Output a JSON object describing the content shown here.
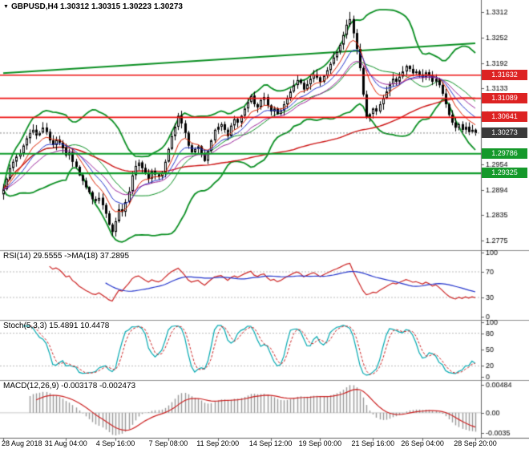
{
  "header": {
    "marker": "▼"
  },
  "chart_data": [
    {
      "type": "candlestick",
      "symbol": "GBPUSD",
      "timeframe": "H4",
      "title": "GBPUSD,H4 1.30312 1.30315 1.30223 1.30273",
      "ohlc_display": {
        "open": "1.30312",
        "high": "1.30315",
        "low": "1.30223",
        "close": "1.30273"
      },
      "closes": [
        1.2895,
        1.292,
        1.2945,
        1.296,
        1.2972,
        1.298,
        1.2998,
        1.3015,
        1.3028,
        1.3035,
        1.3022,
        1.3028,
        1.304,
        1.303,
        1.301,
        1.2999,
        1.3012,
        1.3005,
        1.2992,
        1.2975,
        1.2982,
        1.296,
        1.2948,
        1.2928,
        1.2915,
        1.29,
        1.2888,
        1.2872,
        1.2868,
        1.2875,
        1.2858,
        1.2838,
        1.2812,
        1.2795,
        1.282,
        1.2848,
        1.2842,
        1.2865,
        1.289,
        1.2928,
        1.295,
        1.2958,
        1.2945,
        1.2932,
        1.292,
        1.2938,
        1.293,
        1.2925,
        1.2935,
        1.296,
        1.299,
        1.302,
        1.3042,
        1.3068,
        1.305,
        1.3028,
        1.2998,
        1.2982,
        1.299,
        1.2996,
        1.2978,
        1.2962,
        1.2985,
        1.301,
        1.3035,
        1.3042,
        1.3048,
        1.3035,
        1.302,
        1.3045,
        1.306,
        1.3052,
        1.3068,
        1.3085,
        1.31,
        1.3115,
        1.3095,
        1.3088,
        1.3105,
        1.3112,
        1.3092,
        1.3078,
        1.3085,
        1.3072,
        1.308,
        1.3095,
        1.311,
        1.3125,
        1.314,
        1.3152,
        1.3145,
        1.313,
        1.3142,
        1.3155,
        1.3165,
        1.3158,
        1.3148,
        1.3162,
        1.3175,
        1.319,
        1.3205,
        1.3218,
        1.3235,
        1.3258,
        1.3282,
        1.3295,
        1.3262,
        1.3225,
        1.318,
        1.3118,
        1.3065,
        1.3072,
        1.3085,
        1.3078,
        1.3095,
        1.311,
        1.3125,
        1.3142,
        1.3155,
        1.3148,
        1.316,
        1.3172,
        1.3185,
        1.3178,
        1.3168,
        1.3172,
        1.3165,
        1.3158,
        1.317,
        1.3162,
        1.3148,
        1.3155,
        1.314,
        1.312,
        1.3095,
        1.307,
        1.3052,
        1.304,
        1.3048,
        1.3035,
        1.3042,
        1.303,
        1.3035,
        1.3027
      ],
      "spike_high": {
        "index": 105,
        "price": 1.3312
      },
      "spike_low": {
        "index": 33,
        "price": 1.2785
      },
      "y_range": [
        1.2752,
        1.334
      ],
      "y_tick_labels": [
        "1.3312",
        "1.3252",
        "1.3192",
        "1.3133",
        "1.3073",
        "1.2954",
        "1.2894",
        "1.2835",
        "1.2775"
      ],
      "x_tick_labels": [
        "28 Aug 2018",
        "31 Aug 04:00",
        "4 Sep 16:00",
        "7 Sep 08:00",
        "11 Sep 20:00",
        "14 Sep 12:00",
        "19 Sep 00:00",
        "21 Sep 16:00",
        "26 Sep 04:00",
        "28 Sep 20:00"
      ],
      "x_tick_indices": [
        0,
        19,
        34,
        50,
        65,
        81,
        96,
        112,
        127,
        143
      ],
      "hlines": [
        {
          "label": "1.31632",
          "price": 1.31632,
          "color": "#ee1111",
          "tag_bg": "#dd2222",
          "width": 1.6
        },
        {
          "label": "1.31089",
          "price": 1.31089,
          "color": "#ee1111",
          "tag_bg": "#dd2222",
          "width": 1.6
        },
        {
          "label": "1.30641",
          "price": 1.30641,
          "color": "#ee1111",
          "tag_bg": "#dd2222",
          "width": 1.6
        },
        {
          "label": "1.29786",
          "price": 1.29786,
          "color": "#0e9c2a",
          "tag_bg": "#14992a",
          "width": 2.2
        },
        {
          "label": "1.29325",
          "price": 1.29325,
          "color": "#0e9c2a",
          "tag_bg": "#14992a",
          "width": 2.2
        }
      ],
      "bid": {
        "label": "1.30273",
        "price": 1.30273,
        "tag_bg": "#3a3a3a",
        "line_color": "#888888"
      },
      "trendlines": [
        {
          "i1": 0,
          "p1": 1.3168,
          "i2": 143,
          "p2": 1.3238,
          "color": "#0a8f22",
          "width": 2
        }
      ],
      "indicators": {
        "bollinger_period": 20,
        "bollinger_dev": 2,
        "ema_periods": [
          8,
          13,
          21
        ],
        "long_ma_period": 89
      },
      "colors": {
        "bull_body": "#ffffff",
        "bear_body": "#000000",
        "candle_outline": "#000000",
        "bollinger": "#0a8f22",
        "long_ma": "#cc1111",
        "emas": [
          "#dd2200",
          "#2233cc",
          "#992299"
        ]
      }
    },
    {
      "type": "line",
      "title": "RSI(14) 29.5555 ->MA(18) 37.2895",
      "period": 14,
      "ma_period": 18,
      "current_value": 29.5555,
      "current_ma": 37.2895,
      "range": [
        0,
        100
      ],
      "y_ticks": [
        100,
        70,
        30,
        0
      ],
      "levels": [
        70,
        30
      ],
      "colors": {
        "line": "#cc2222",
        "ma": "#2233cc",
        "level": "#bbbbbb"
      }
    },
    {
      "type": "line",
      "title": "Stoch(5,3,3) 15.4891 10.4478",
      "k_period": 5,
      "slowing": 3,
      "d_period": 3,
      "current_k": 15.4891,
      "current_d": 10.4478,
      "range": [
        0,
        100
      ],
      "y_ticks": [
        100,
        80,
        50,
        20,
        0
      ],
      "levels": [
        80,
        20
      ],
      "colors": {
        "k": "#00a8b0",
        "d": "#cc2222",
        "level": "#bbbbbb"
      }
    },
    {
      "type": "bar",
      "title": "MACD(12,26,9) -0.003178 -0.002473",
      "fast": 12,
      "slow": 26,
      "signal_period": 9,
      "current_macd": -0.003178,
      "current_signal": -0.002473,
      "range": [
        -0.0038,
        0.0053
      ],
      "y_tick_labels": [
        "0.00484",
        "0.00",
        "-0.0035"
      ],
      "y_tick_values": [
        0.00484,
        0,
        -0.0035
      ],
      "colors": {
        "hist": "#9a9a9a",
        "signal": "#cc2222",
        "zero": "#cccccc"
      }
    }
  ]
}
